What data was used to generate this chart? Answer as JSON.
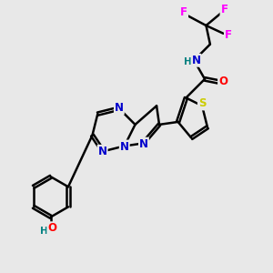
{
  "background_color": "#e8e8e8",
  "bond_color": "#000000",
  "bond_width": 1.8,
  "atom_colors": {
    "N": "#0000cc",
    "O": "#ff0000",
    "S": "#cccc00",
    "F": "#ff00ff",
    "H": "#008080",
    "C": "#000000"
  },
  "font_size": 8.5,
  "fig_width": 3.0,
  "fig_height": 3.0,
  "xlim": [
    0,
    10
  ],
  "ylim": [
    0,
    10
  ]
}
